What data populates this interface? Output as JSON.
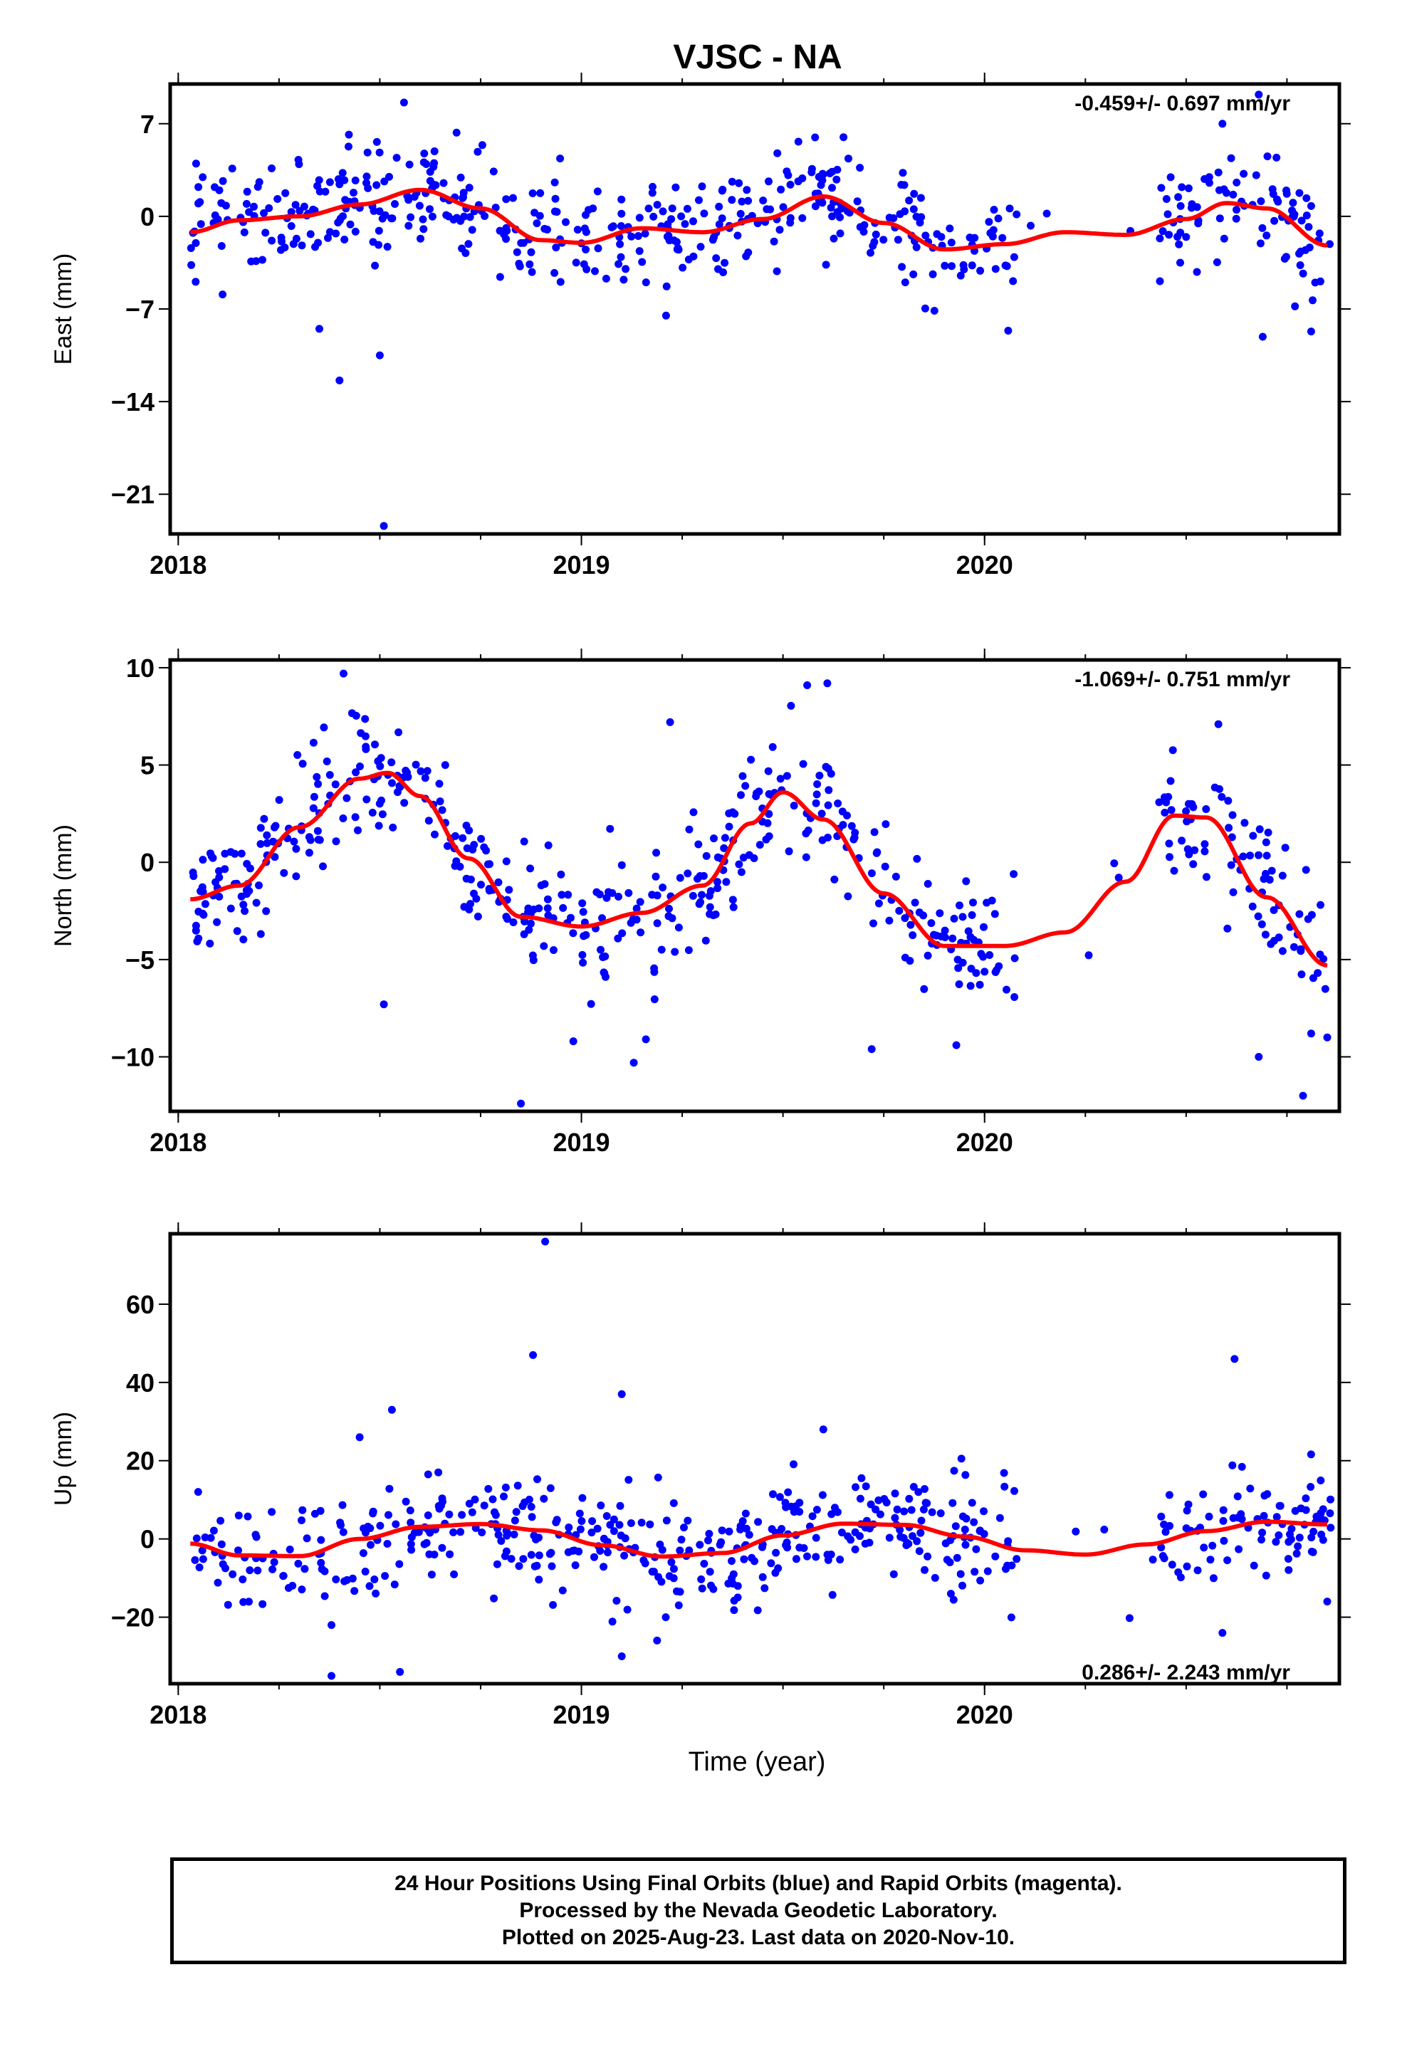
{
  "title": "VJSC - NA",
  "footer": {
    "line1": "24 Hour Positions Using Final Orbits (blue) and Rapid Orbits (magenta).",
    "line2": "Processed by the Nevada Geodetic Laboratory.",
    "line3": "Plotted on 2025-Aug-23. Last data on 2020-Nov-10."
  },
  "colors": {
    "points": "#0000ff",
    "fit": "#ff0000",
    "frame": "#000000"
  },
  "chart_data": [
    {
      "type": "scatter",
      "ylabel": "East (mm)",
      "xlabel": "",
      "rate": "-0.459+/- 0.697 mm/yr",
      "xlim": [
        2017.98,
        2020.88
      ],
      "ylim": [
        -24,
        10
      ],
      "yticks": [
        7,
        0,
        -7,
        -14,
        -21
      ],
      "ytick_labels": [
        "7",
        "0",
        "−7",
        "−14",
        "−21"
      ],
      "xticks": [
        2018,
        2019,
        2020
      ],
      "xtick_labels": [
        "2018",
        "2019",
        "2020"
      ],
      "fit": {
        "x": [
          2018.03,
          2018.15,
          2018.3,
          2018.45,
          2018.6,
          2018.75,
          2018.9,
          2019.0,
          2019.15,
          2019.3,
          2019.45,
          2019.6,
          2019.75,
          2019.9,
          2020.05,
          2020.2,
          2020.35,
          2020.5,
          2020.6,
          2020.7,
          2020.85
        ],
        "y": [
          -1.2,
          -0.3,
          0.0,
          0.9,
          2.0,
          0.6,
          -1.8,
          -2.0,
          -0.9,
          -1.2,
          -0.2,
          1.5,
          -0.5,
          -2.5,
          -2.1,
          -1.2,
          -1.4,
          -0.2,
          1.0,
          0.6,
          -2.2
        ]
      },
      "outliers": [
        [
          2018.35,
          -8.5
        ],
        [
          2018.4,
          -12.4
        ],
        [
          2018.5,
          -10.5
        ],
        [
          2018.51,
          -23.4
        ],
        [
          2018.56,
          8.6
        ],
        [
          2020.59,
          7.0
        ],
        [
          2020.68,
          9.2
        ],
        [
          2020.69,
          -9.1
        ],
        [
          2020.81,
          -8.7
        ],
        [
          2020.77,
          -6.8
        ],
        [
          2018.11,
          -5.9
        ],
        [
          2019.21,
          -7.5
        ]
      ],
      "random": {
        "n": 520,
        "seed": 11,
        "sigma": 2.1
      }
    },
    {
      "type": "scatter",
      "ylabel": "North (mm)",
      "xlabel": "",
      "rate": "-1.069+/- 0.751 mm/yr",
      "xlim": [
        2017.98,
        2020.88
      ],
      "ylim": [
        -12.8,
        10.4
      ],
      "yticks": [
        10,
        5,
        0,
        -5,
        -10
      ],
      "ytick_labels": [
        "10",
        "5",
        "0",
        "−5",
        "−10"
      ],
      "xticks": [
        2018,
        2019,
        2020
      ],
      "xtick_labels": [
        "2018",
        "2019",
        "2020"
      ],
      "fit": {
        "x": [
          2018.03,
          2018.15,
          2018.3,
          2018.45,
          2018.52,
          2018.6,
          2018.72,
          2018.85,
          2019.0,
          2019.15,
          2019.3,
          2019.42,
          2019.5,
          2019.6,
          2019.75,
          2019.9,
          2020.05,
          2020.2,
          2020.35,
          2020.47,
          2020.55,
          2020.7,
          2020.85
        ],
        "y": [
          -1.9,
          -1.2,
          1.8,
          4.3,
          4.6,
          3.4,
          0.2,
          -2.8,
          -3.3,
          -2.6,
          -1.2,
          2.0,
          3.6,
          2.2,
          -1.6,
          -4.3,
          -4.3,
          -3.6,
          -1.0,
          2.4,
          2.3,
          -1.8,
          -5.3
        ]
      },
      "outliers": [
        [
          2018.41,
          9.7
        ],
        [
          2018.51,
          -7.3
        ],
        [
          2018.85,
          -12.4
        ],
        [
          2018.98,
          -9.2
        ],
        [
          2019.13,
          -10.3
        ],
        [
          2019.16,
          -9.1
        ],
        [
          2019.22,
          7.2
        ],
        [
          2019.56,
          9.1
        ],
        [
          2019.61,
          9.2
        ],
        [
          2019.72,
          -9.6
        ],
        [
          2019.93,
          -9.4
        ],
        [
          2020.58,
          7.1
        ],
        [
          2020.68,
          -10.0
        ],
        [
          2020.79,
          -12.0
        ],
        [
          2020.81,
          -8.8
        ],
        [
          2020.85,
          -9.0
        ]
      ],
      "random": {
        "n": 520,
        "seed": 23,
        "sigma": 1.6
      }
    },
    {
      "type": "scatter",
      "ylabel": "Up (mm)",
      "xlabel": "Time (year)",
      "rate": "0.286+/- 2.243 mm/yr",
      "xlim": [
        2017.98,
        2020.88
      ],
      "ylim": [
        -37,
        78
      ],
      "yticks": [
        60,
        40,
        20,
        0,
        -20
      ],
      "ytick_labels": [
        "60",
        "40",
        "20",
        "0",
        "−20"
      ],
      "xticks": [
        2018,
        2019,
        2020
      ],
      "xtick_labels": [
        "2018",
        "2019",
        "2020"
      ],
      "fit": {
        "x": [
          2018.03,
          2018.15,
          2018.3,
          2018.45,
          2018.6,
          2018.75,
          2018.9,
          2019.05,
          2019.2,
          2019.35,
          2019.5,
          2019.65,
          2019.8,
          2019.95,
          2020.1,
          2020.25,
          2020.4,
          2020.55,
          2020.7,
          2020.85
        ],
        "y": [
          -1.2,
          -4.2,
          -4.4,
          0.0,
          3.1,
          3.8,
          2.2,
          -1.6,
          -4.5,
          -3.6,
          0.9,
          3.9,
          3.6,
          0.6,
          -2.9,
          -4.0,
          -1.4,
          2.0,
          4.4,
          3.7
        ]
      },
      "outliers": [
        [
          2018.38,
          -35
        ],
        [
          2018.55,
          -34
        ],
        [
          2018.88,
          47
        ],
        [
          2018.91,
          76
        ],
        [
          2019.1,
          37
        ],
        [
          2019.1,
          -30
        ],
        [
          2020.62,
          46
        ],
        [
          2020.59,
          -24
        ],
        [
          2018.38,
          -22
        ],
        [
          2018.45,
          26
        ],
        [
          2018.53,
          33
        ],
        [
          2019.6,
          28
        ],
        [
          2018.15,
          6
        ],
        [
          2020.85,
          -16
        ]
      ],
      "random": {
        "n": 520,
        "seed": 37,
        "sigma": 6.5
      }
    }
  ]
}
